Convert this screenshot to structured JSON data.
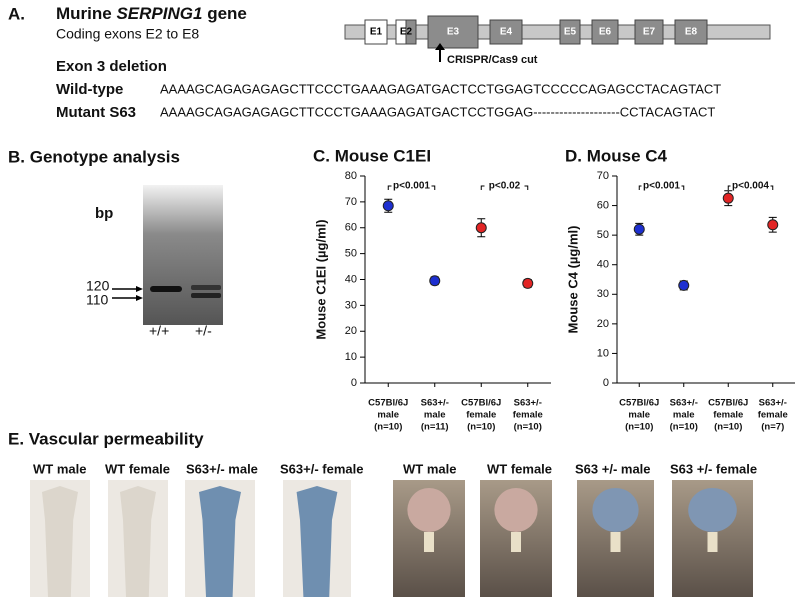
{
  "panel_a": {
    "label": "A.",
    "gene_title": [
      "Murine",
      "SERPING1",
      "gene"
    ],
    "subtitle": "Coding exons E2 to E8",
    "exons": [
      "E1",
      "E2",
      "E3",
      "E4",
      "E5",
      "E6",
      "E7",
      "E8"
    ],
    "cut_label": "CRISPR/Cas9 cut",
    "deletion_title": "Exon 3 deletion",
    "wild_type": {
      "label": "Wild-type",
      "sequence": "AAAAGCAGAGAGAGCTTCCCTGAAAGAGATGACTCCTGGAGTCCCCCAGAGCCTACAGTACT"
    },
    "mutant": {
      "label": "Mutant S63",
      "sequence": "AAAAGCAGAGAGAGCTTCCCTGAAAGAGATGACTCCTGGAG--------------------CCTACAGTACT"
    }
  },
  "panel_b": {
    "title": "B. Genotype analysis",
    "unit": "bp",
    "markers": [
      "120",
      "110"
    ],
    "lanes": [
      "+/+",
      "+/-"
    ]
  },
  "chart_data": [
    {
      "type": "dot",
      "title": "C. Mouse C1EI",
      "y_label": "Mouse C1EI (µg/ml)",
      "categories": [
        [
          "C57Bl/6J",
          "male",
          "(n=10)"
        ],
        [
          "S63+/-",
          "male",
          "(n=11)"
        ],
        [
          "C57Bl/6J",
          "female",
          "(n=10)"
        ],
        [
          "S63+/-",
          "female",
          "(n=10)"
        ]
      ],
      "values": [
        68.5,
        39.5,
        60,
        38.5
      ],
      "errors": [
        2.5,
        1.5,
        3.5,
        1.5
      ],
      "colors": [
        "#1d2fd0",
        "#1d2fd0",
        "#e22525",
        "#e22525"
      ],
      "ylim": [
        0,
        80
      ],
      "yticks": [
        0,
        10,
        20,
        30,
        40,
        50,
        60,
        70,
        80
      ],
      "annotations": [
        "p<0.001",
        "p<0.02"
      ]
    },
    {
      "type": "dot",
      "title": "D. Mouse C4",
      "y_label": "Mouse C4 (µg/ml)",
      "categories": [
        [
          "C57Bl/6J",
          "male",
          "(n=10)"
        ],
        [
          "S63+/-",
          "male",
          "(n=10)"
        ],
        [
          "C57Bl/6J",
          "female",
          "(n=10)"
        ],
        [
          "S63+/-",
          "female",
          "(n=7)"
        ]
      ],
      "values": [
        52,
        33,
        62.5,
        53.5
      ],
      "errors": [
        2,
        1.5,
        2.5,
        2.5
      ],
      "colors": [
        "#1d2fd0",
        "#1d2fd0",
        "#e22525",
        "#e22525"
      ],
      "ylim": [
        0,
        70
      ],
      "yticks": [
        0,
        10,
        20,
        30,
        40,
        50,
        60,
        70
      ],
      "annotations": [
        "p<0.001",
        "p<0.004"
      ]
    }
  ],
  "panel_e": {
    "title": "E. Vascular permeability",
    "photos": [
      "WT male",
      "WT female",
      "S63+/- male",
      "S63+/- female",
      "WT male",
      "WT female",
      "S63 +/- male",
      "S63 +/- female"
    ]
  }
}
